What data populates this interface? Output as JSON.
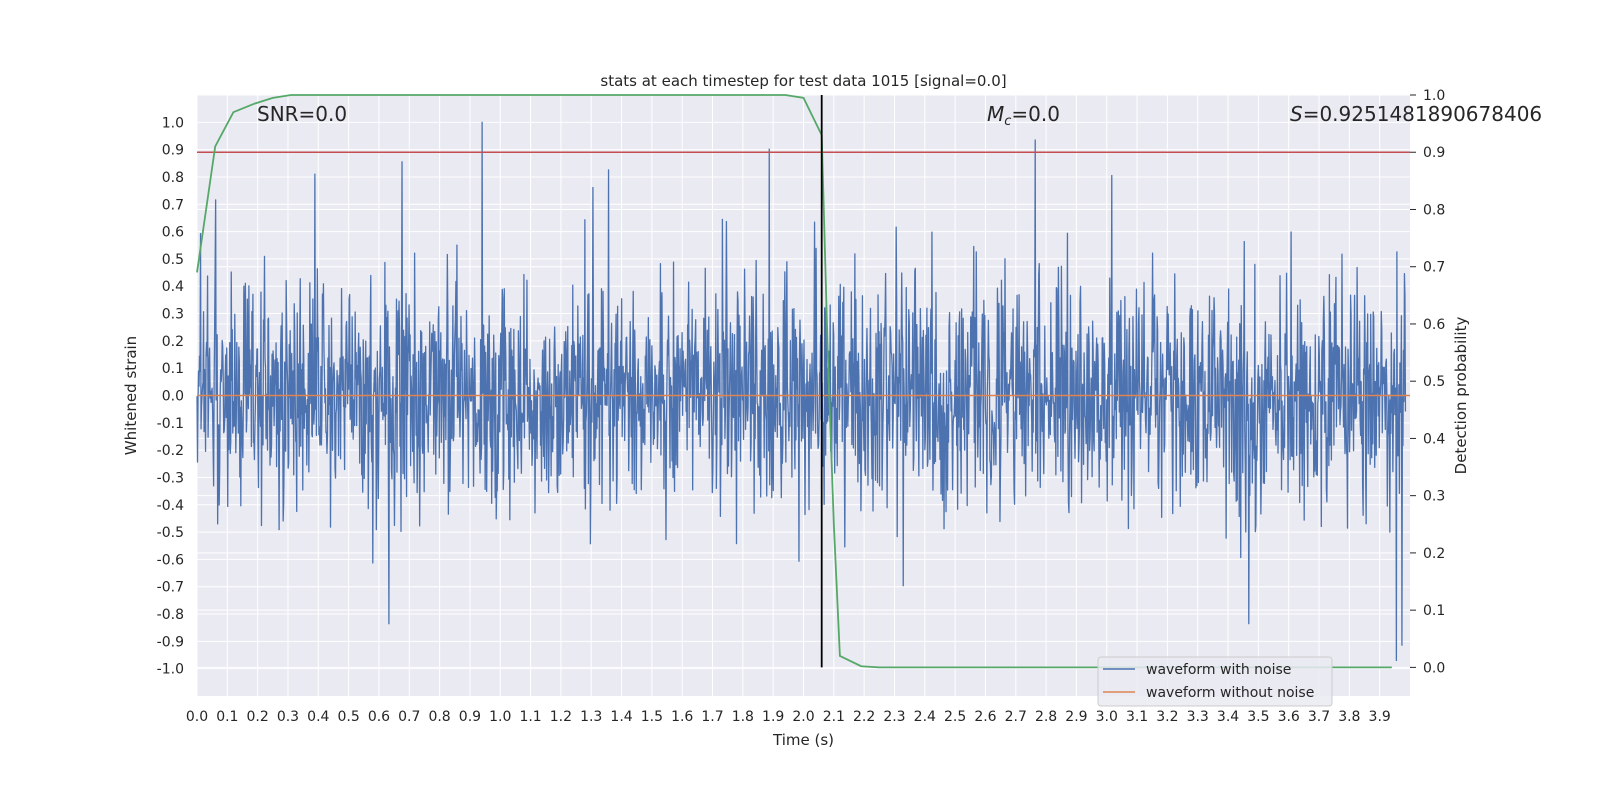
{
  "chart_data": {
    "type": "line",
    "title": "stats at each timestep for test data 1015 [signal=0.0]",
    "xlabel": "Time (s)",
    "ylabel": "Whitened strain",
    "y2label": "Detection probability",
    "xlim": [
      0.0,
      4.0
    ],
    "ylim": [
      -1.1,
      1.1
    ],
    "y2lim": [
      -0.05,
      1.0
    ],
    "grid": true,
    "xticks": [
      "0.0",
      "0.1",
      "0.2",
      "0.3",
      "0.4",
      "0.5",
      "0.6",
      "0.7",
      "0.8",
      "0.9",
      "1.0",
      "1.1",
      "1.2",
      "1.3",
      "1.4",
      "1.5",
      "1.6",
      "1.7",
      "1.8",
      "1.9",
      "2.0",
      "2.1",
      "2.2",
      "2.3",
      "2.4",
      "2.5",
      "2.6",
      "2.7",
      "2.8",
      "2.9",
      "3.0",
      "3.1",
      "3.2",
      "3.3",
      "3.4",
      "3.5",
      "3.6",
      "3.7",
      "3.8",
      "3.9"
    ],
    "yticks": [
      "1.0",
      "0.9",
      "0.8",
      "0.7",
      "0.6",
      "0.5",
      "0.4",
      "0.3",
      "0.2",
      "0.1",
      "0.0",
      "-0.1",
      "-0.2",
      "-0.3",
      "-0.4",
      "-0.5",
      "-0.6",
      "-0.7",
      "-0.8",
      "-0.9",
      "-1.0"
    ],
    "y2ticks": [
      "1.0",
      "0.9",
      "0.8",
      "0.7",
      "0.6",
      "0.5",
      "0.4",
      "0.3",
      "0.2",
      "0.1",
      "0.0"
    ],
    "annotations": {
      "snr": "SNR=0.0",
      "mc_symbol": "M",
      "mc_sub": "c",
      "mc_value": "=0.0",
      "s_symbol": "S",
      "s_value": "=0.9251481890678406"
    },
    "threshold": {
      "value": 0.9,
      "axis": "y2",
      "color": "#c44e52"
    },
    "vertical_marker": {
      "x": 2.06,
      "color": "#000000"
    },
    "series": [
      {
        "name": "waveform with noise",
        "color": "#4c72b0",
        "axis": "y1",
        "note": "dense noise, typical amplitude ~0.35, peaks near +1.0 and -0.97"
      },
      {
        "name": "waveform without noise",
        "color": "#dd8452",
        "axis": "y1",
        "constant": 0.0
      },
      {
        "name": "detection probability",
        "color": "#55a868",
        "axis": "y2",
        "x": [
          0.0,
          0.06,
          0.12,
          0.19,
          0.25,
          0.31,
          0.37,
          0.5,
          0.75,
          1.0,
          1.25,
          1.5,
          1.75,
          1.94,
          2.0,
          2.06,
          2.08,
          2.1,
          2.12,
          2.19,
          2.25,
          2.5,
          3.0,
          3.5,
          3.94
        ],
        "y": [
          0.69,
          0.91,
          0.97,
          0.985,
          0.995,
          1.0,
          1.0,
          1.0,
          1.0,
          1.0,
          1.0,
          1.0,
          1.0,
          1.0,
          0.995,
          0.93,
          0.55,
          0.25,
          0.02,
          0.002,
          0.0,
          0.0,
          0.0,
          0.0,
          0.0
        ]
      }
    ],
    "legend": {
      "position": "lower-right",
      "items": [
        "waveform with noise",
        "waveform without noise"
      ]
    }
  }
}
